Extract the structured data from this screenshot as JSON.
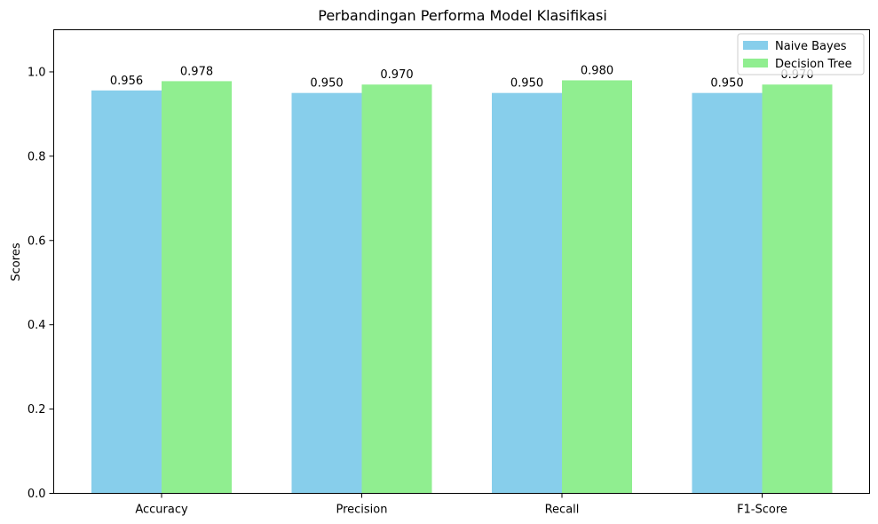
{
  "chart_data": {
    "type": "bar",
    "title": "Perbandingan Performa Model Klasifikasi",
    "xlabel": "",
    "ylabel": "Scores",
    "categories": [
      "Accuracy",
      "Precision",
      "Recall",
      "F1-Score"
    ],
    "series": [
      {
        "name": "Naive Bayes",
        "color": "#87ceeb",
        "values": [
          0.956,
          0.95,
          0.95,
          0.95
        ],
        "labels": [
          "0.956",
          "0.950",
          "0.950",
          "0.950"
        ]
      },
      {
        "name": "Decision Tree",
        "color": "#90ee90",
        "values": [
          0.978,
          0.97,
          0.98,
          0.97
        ],
        "labels": [
          "0.978",
          "0.970",
          "0.980",
          "0.970"
        ]
      }
    ],
    "ylim": [
      0,
      1.1
    ],
    "yticks": [
      0.0,
      0.2,
      0.4,
      0.6,
      0.8,
      1.0
    ],
    "ytick_labels": [
      "0.0",
      "0.2",
      "0.4",
      "0.6",
      "0.8",
      "1.0"
    ],
    "grid": false,
    "legend_position": "top-right"
  }
}
